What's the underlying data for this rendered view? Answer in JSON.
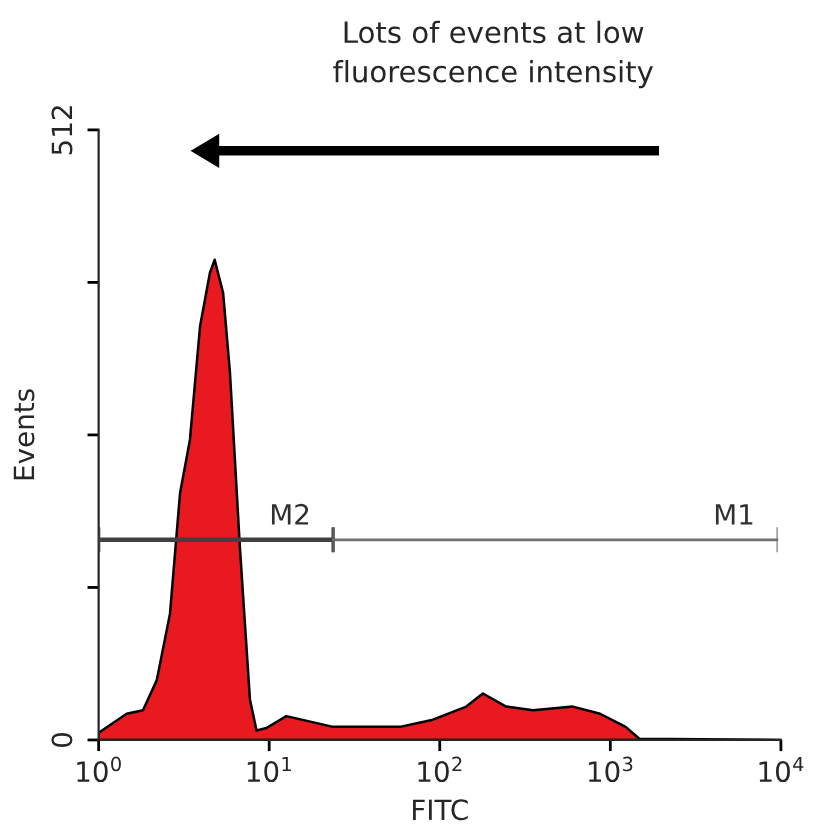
{
  "chart_data": {
    "type": "area",
    "xlabel": "FITC",
    "ylabel": "Events",
    "log": "x",
    "annotations": [
      "Lots of events at low\nfluorescence intensity"
    ],
    "xlim": [
      1,
      10000
    ],
    "xticks": [
      {
        "value": 1,
        "label": "10$^{0}$"
      },
      {
        "value": 10,
        "label": "10$^{1}$"
      },
      {
        "value": 100,
        "label": "10$^{2}$"
      },
      {
        "value": 1000,
        "label": "10$^{3}$"
      },
      {
        "value": 10000,
        "label": "10$^{4}$"
      }
    ],
    "ylim": [
      0,
      512
    ],
    "yticks": [
      0,
      {
        "value": 128,
        "label": null
      },
      {
        "value": 256,
        "label": null
      },
      {
        "value": 384,
        "label": null
      },
      512
    ],
    "grid": false,
    "legend": false,
    "series": [
      {
        "color": "#e8191f",
        "x": [
          1,
          1.46,
          1.82,
          2.19,
          2.62,
          3.0,
          3.43,
          3.93,
          4.49,
          4.79,
          5.37,
          5.89,
          6.73,
          7.71,
          8.43,
          9.63,
          12.6,
          23.7,
          58.3,
          91.2,
          143,
          179,
          245,
          352,
          603,
          871,
          1230,
          1480,
          10000
        ],
        "values": [
          6,
          22,
          25,
          50,
          106,
          207,
          252,
          347,
          392,
          403,
          375,
          308,
          162,
          34,
          8,
          10,
          20,
          11,
          11,
          17,
          28,
          39,
          28,
          25,
          28,
          22,
          11,
          1,
          0
        ]
      },
      {
        "type": "line",
        "name": "M2",
        "color": "#404040",
        "x": [
          1,
          23.7
        ],
        "values": [
          168,
          168
        ]
      },
      {
        "type": "line",
        "name": "M1",
        "color": "#707070",
        "x": [
          23.7,
          9500
        ],
        "values": [
          168,
          168
        ]
      }
    ]
  }
}
